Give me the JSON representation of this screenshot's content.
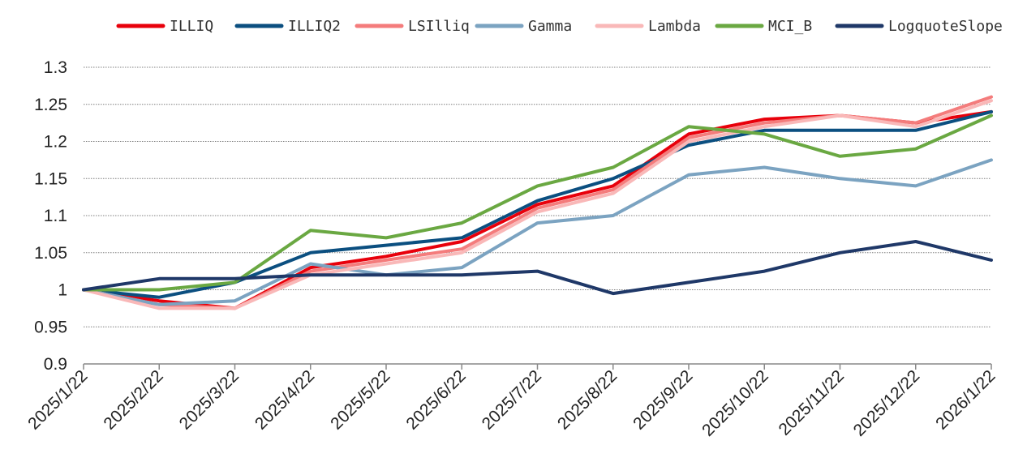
{
  "chart_data": {
    "type": "line",
    "title": "",
    "xlabel": "",
    "ylabel": "",
    "ylim": [
      0.9,
      1.3
    ],
    "yticks": [
      "0.9",
      "0.95",
      "1",
      "1.05",
      "1.1",
      "1.15",
      "1.2",
      "1.25",
      "1.3"
    ],
    "x": [
      "2025/1/22",
      "2025/2/22",
      "2025/3/22",
      "2025/4/22",
      "2025/5/22",
      "2025/6/22",
      "2025/7/22",
      "2025/8/22",
      "2025/9/22",
      "2025/10/22",
      "2025/11/22",
      "2025/12/22",
      "2026/1/22"
    ],
    "grid": "horizontal dotted",
    "legend_position": "top",
    "series": [
      {
        "name": "ILLIQ",
        "color": "#e8000b",
        "values": [
          1.0,
          0.985,
          0.975,
          1.03,
          1.045,
          1.065,
          1.115,
          1.14,
          1.21,
          1.23,
          1.235,
          1.225,
          1.24
        ]
      },
      {
        "name": "ILLIQ2",
        "color": "#0b4f80",
        "values": [
          1.0,
          0.99,
          1.01,
          1.05,
          1.06,
          1.07,
          1.12,
          1.15,
          1.195,
          1.215,
          1.215,
          1.215,
          1.24
        ]
      },
      {
        "name": "LSIlliq",
        "color": "#f47c7c",
        "values": [
          1.0,
          0.98,
          0.975,
          1.025,
          1.04,
          1.055,
          1.11,
          1.135,
          1.205,
          1.225,
          1.235,
          1.225,
          1.26
        ]
      },
      {
        "name": "Gamma",
        "color": "#7ba3c1",
        "values": [
          1.0,
          0.98,
          0.985,
          1.035,
          1.02,
          1.03,
          1.09,
          1.1,
          1.155,
          1.165,
          1.15,
          1.14,
          1.175
        ]
      },
      {
        "name": "Lambda",
        "color": "#f9b8b8",
        "values": [
          1.0,
          0.975,
          0.975,
          1.02,
          1.035,
          1.05,
          1.105,
          1.13,
          1.2,
          1.22,
          1.235,
          1.22,
          1.255
        ]
      },
      {
        "name": "MCI_B",
        "color": "#6aa842",
        "values": [
          1.0,
          1.0,
          1.01,
          1.08,
          1.07,
          1.09,
          1.14,
          1.165,
          1.22,
          1.21,
          1.18,
          1.19,
          1.235
        ]
      },
      {
        "name": "LogquoteSlope",
        "color": "#1f3868",
        "values": [
          1.0,
          1.015,
          1.015,
          1.02,
          1.02,
          1.02,
          1.025,
          0.995,
          1.01,
          1.025,
          1.05,
          1.065,
          1.04
        ]
      }
    ]
  }
}
